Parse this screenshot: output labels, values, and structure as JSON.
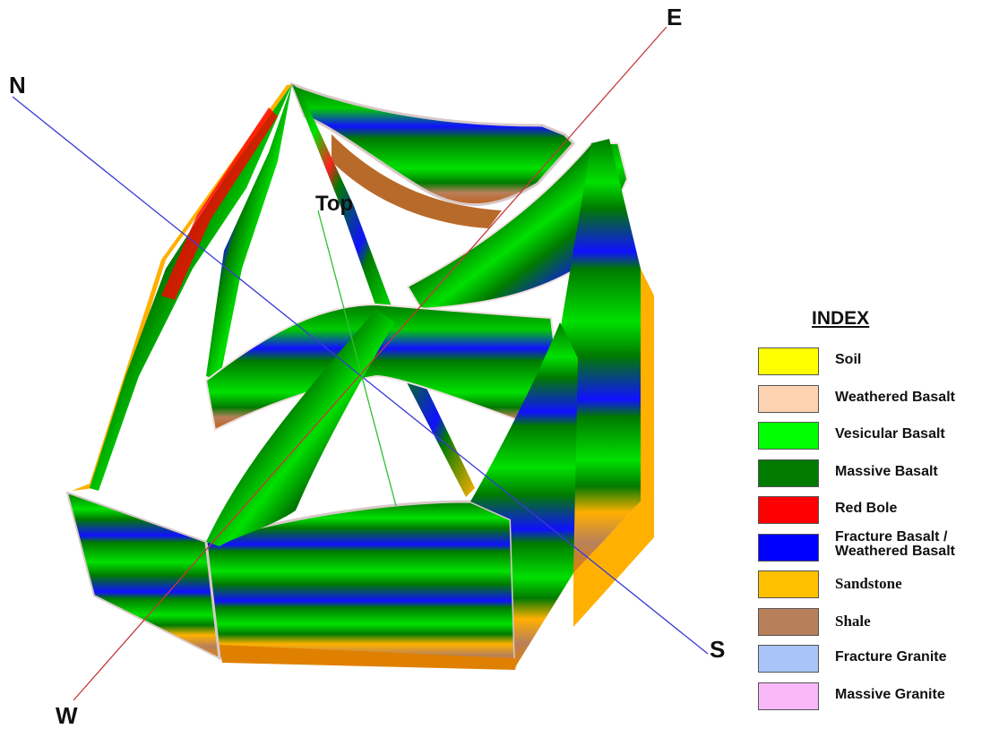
{
  "compass": {
    "north": "N",
    "east": "E",
    "south": "S",
    "west": "W"
  },
  "top_label": "Top",
  "axis_colors": {
    "north_south": "#3a3ad8",
    "east_west": "#c43a3a",
    "vertical": "#2fbf2f"
  },
  "legend": {
    "title": "INDEX",
    "items": [
      {
        "label": "Soil",
        "color": "#ffff00"
      },
      {
        "label": "Weathered Basalt",
        "color": "#fcd2b0"
      },
      {
        "label": "Vesicular Basalt",
        "color": "#00ff00"
      },
      {
        "label": "Massive Basalt",
        "color": "#007a00"
      },
      {
        "label": "Red Bole",
        "color": "#ff0000"
      },
      {
        "label": "Fracture Basalt /\nWeathered Basalt",
        "color": "#0000ff"
      },
      {
        "label": "Sandstone",
        "color": "#ffc000",
        "serif": true
      },
      {
        "label": "Shale",
        "color": "#b8805a",
        "serif": true
      },
      {
        "label": "Fracture Granite",
        "color": "#a8c4f8"
      },
      {
        "label": "Massive Granite",
        "color": "#f8b8f8"
      }
    ]
  }
}
